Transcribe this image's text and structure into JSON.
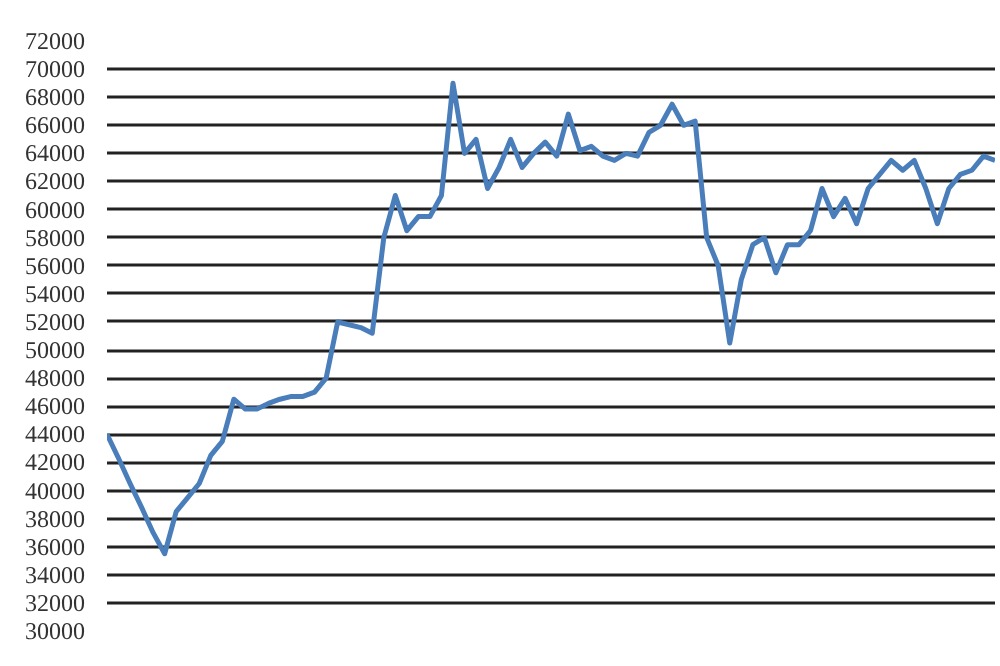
{
  "chart_data": {
    "type": "line",
    "categories": [
      null,
      null,
      null,
      null,
      null,
      null,
      null,
      null,
      null,
      null,
      null,
      null,
      null,
      null,
      null,
      null,
      null,
      null,
      null,
      null,
      null,
      null,
      null,
      null,
      null,
      null,
      null,
      null,
      null,
      null,
      null,
      null,
      null,
      null,
      null,
      null,
      null,
      null,
      null,
      null,
      null,
      null,
      null,
      null,
      null,
      null,
      null,
      null,
      null,
      null,
      null,
      null,
      null,
      null,
      null,
      null,
      null,
      null,
      null,
      null,
      null,
      null,
      null,
      null,
      null,
      null,
      null,
      null,
      null,
      null,
      null,
      null,
      null,
      null,
      null,
      null,
      null,
      null
    ],
    "series": [
      {
        "color": "#4a7ebb",
        "values": [
          44000,
          42300,
          40500,
          38800,
          37000,
          35500,
          38500,
          39500,
          40500,
          42500,
          43500,
          46500,
          45800,
          45800,
          46200,
          46500,
          46700,
          46700,
          47000,
          48000,
          52000,
          51800,
          51600,
          51200,
          58000,
          61000,
          58500,
          59500,
          59500,
          61000,
          69000,
          64000,
          65000,
          61500,
          63000,
          65000,
          63000,
          64000,
          64800,
          63800,
          66800,
          64200,
          64500,
          63800,
          63500,
          64000,
          63800,
          65500,
          66000,
          67500,
          66000,
          66300,
          58000,
          56000,
          50500,
          55000,
          57500,
          58000,
          55500,
          57500,
          57500,
          58500,
          61500,
          59500,
          60800,
          59000,
          61500,
          62500,
          63500,
          62800,
          63500,
          61500,
          59000,
          61500,
          62500,
          62800,
          63800,
          63500
        ]
      }
    ],
    "ylim": [
      30000,
      72000
    ],
    "yticks": [
      30000,
      32000,
      34000,
      36000,
      38000,
      40000,
      42000,
      44000,
      46000,
      48000,
      50000,
      52000,
      54000,
      56000,
      58000,
      60000,
      62000,
      64000,
      66000,
      68000,
      70000,
      72000
    ],
    "grid": "y",
    "line_style": "solid",
    "marker": "none"
  }
}
